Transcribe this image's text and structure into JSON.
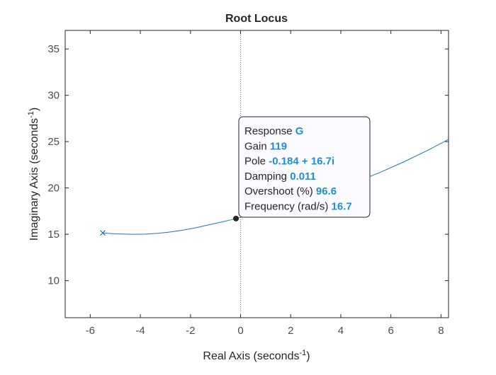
{
  "chart_data": {
    "type": "line",
    "title": "Root Locus",
    "xlabel": "Real Axis (seconds",
    "ylabel": "Imaginary Axis (seconds",
    "label_exponent": "-1",
    "xlim": [
      -7,
      8.3
    ],
    "ylim": [
      6,
      37
    ],
    "xticks": [
      -6,
      -4,
      -2,
      0,
      2,
      4,
      6,
      8
    ],
    "yticks": [
      10,
      15,
      20,
      25,
      30,
      35
    ],
    "grid": false,
    "reference_line_x": 0,
    "series": [
      {
        "color": "#1f77b4",
        "x": [
          -5.5,
          -5.3,
          -5.0,
          -4.6,
          -4.2,
          -3.8,
          -3.3,
          -2.8,
          -2.3,
          -1.8,
          -1.3,
          -0.8,
          -0.4,
          -0.184,
          0.5,
          1.5,
          2.5,
          3.5,
          4.5,
          5.5,
          6.5,
          7.5,
          8.3
        ],
        "y": [
          15.15,
          15.1,
          15.05,
          15.02,
          15.0,
          15.02,
          15.1,
          15.25,
          15.45,
          15.7,
          16.0,
          16.3,
          16.55,
          16.7,
          17.2,
          17.9,
          18.7,
          19.6,
          20.55,
          21.6,
          22.8,
          24.1,
          25.25
        ]
      }
    ],
    "pole_marker": {
      "x": -5.5,
      "y": 15.15,
      "symbol": "x"
    },
    "datatip": {
      "x": -0.184,
      "y": 16.7,
      "rows": [
        {
          "label": "Response",
          "value": "G"
        },
        {
          "label": "Gain",
          "value": "119"
        },
        {
          "label": "Pole",
          "value": "-0.184 + 16.7i"
        },
        {
          "label": "Damping",
          "value": "0.011"
        },
        {
          "label": "Overshoot (%)",
          "value": "96.6"
        },
        {
          "label": "Frequency (rad/s)",
          "value": "16.7"
        }
      ]
    }
  }
}
